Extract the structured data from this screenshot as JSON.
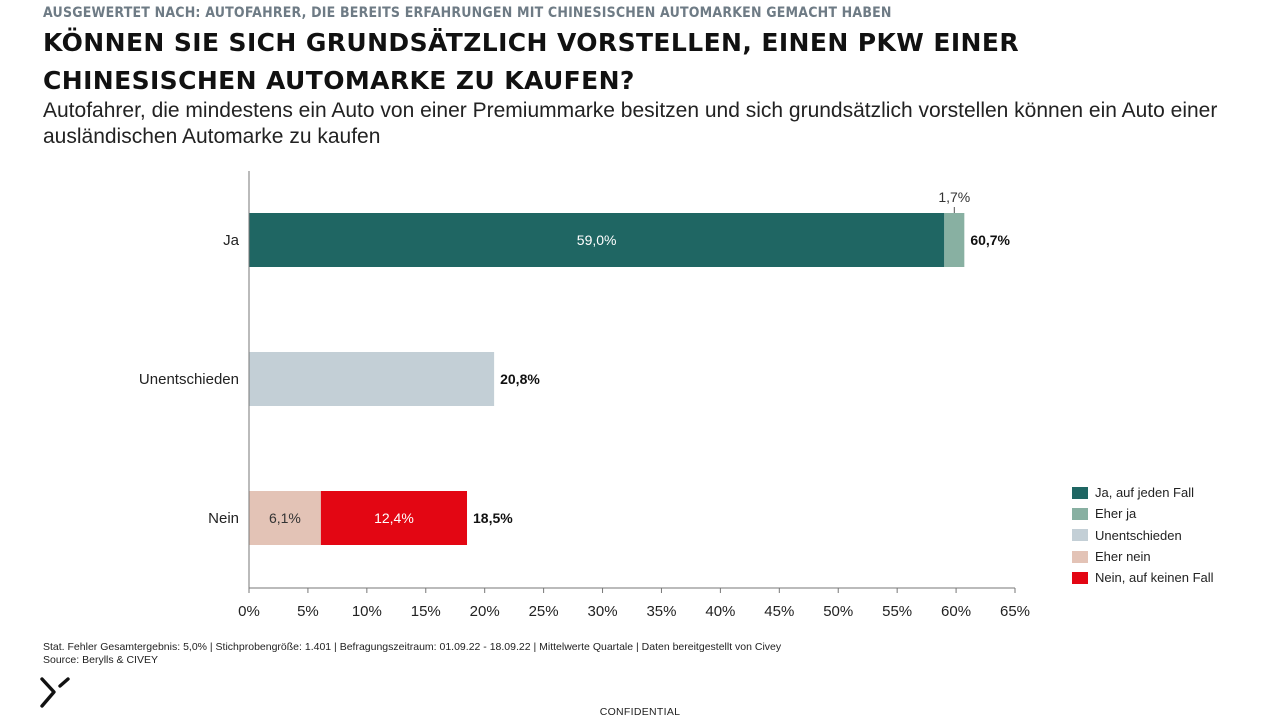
{
  "header": {
    "kicker": "AUSGEWERTET NACH: AUTOFAHRER, DIE BEREITS ERFAHRUNGEN MIT CHINESISCHEN AUTOMARKEN GEMACHT HABEN",
    "title": "KÖNNEN SIE SICH GRUNDSÄTZLICH VORSTELLEN, EINEN PKW EINER CHINESISCHEN AUTOMARKE ZU KAUFEN?",
    "subtitle": "Autofahrer, die mindestens ein Auto von einer Premiummarke besitzen und sich grundsätzlich vorstellen können ein Auto einer ausländischen Automarke zu kaufen"
  },
  "chart_data": {
    "type": "bar",
    "orientation": "horizontal",
    "stacked": true,
    "categories": [
      "Ja",
      "Unentschieden",
      "Nein"
    ],
    "series": [
      {
        "name": "Ja, auf jeden Fall",
        "color": "#1f6663",
        "values": [
          59.0,
          0,
          0
        ],
        "labels": [
          "59,0%",
          "",
          ""
        ],
        "label_color": "#ffffff"
      },
      {
        "name": "Eher ja",
        "color": "#88b0a2",
        "values": [
          1.7,
          0,
          0
        ],
        "labels": [
          "1,7%",
          "",
          ""
        ],
        "label_color": "#333333"
      },
      {
        "name": "Unentschieden",
        "color": "#c3cfd6",
        "values": [
          0,
          20.8,
          0
        ],
        "labels": [
          "",
          "",
          ""
        ],
        "label_color": "#333333"
      },
      {
        "name": "Eher nein",
        "color": "#e3c3b6",
        "values": [
          0,
          0,
          6.1
        ],
        "labels": [
          "",
          "",
          "6,1%"
        ],
        "label_color": "#333333"
      },
      {
        "name": "Nein, auf keinen Fall",
        "color": "#e30613",
        "values": [
          0,
          0,
          12.4
        ],
        "labels": [
          "",
          "",
          "12,4%"
        ],
        "label_color": "#ffffff"
      }
    ],
    "totals": [
      "60,7%",
      "20,8%",
      "18,5%"
    ],
    "xlim": [
      0,
      65
    ],
    "xticks": [
      0,
      5,
      10,
      15,
      20,
      25,
      30,
      35,
      40,
      45,
      50,
      55,
      60,
      65
    ],
    "xtick_labels": [
      "0%",
      "5%",
      "10%",
      "15%",
      "20%",
      "25%",
      "30%",
      "35%",
      "40%",
      "45%",
      "50%",
      "55%",
      "60%",
      "65%"
    ],
    "grid": false,
    "legend": "right"
  },
  "footer": {
    "note": "Stat. Fehler Gesamtergebnis: 5,0% | Stichprobengröße: 1.401 | Befragungszeitraum: 01.09.22 - 18.09.22 | Mittelwerte Quartale | Daten bereitgestellt von Civey",
    "source": "Source: Berylls & CIVEY",
    "confidential": "CONFIDENTIAL"
  },
  "icons": {
    "logo": "berylls-logo"
  }
}
